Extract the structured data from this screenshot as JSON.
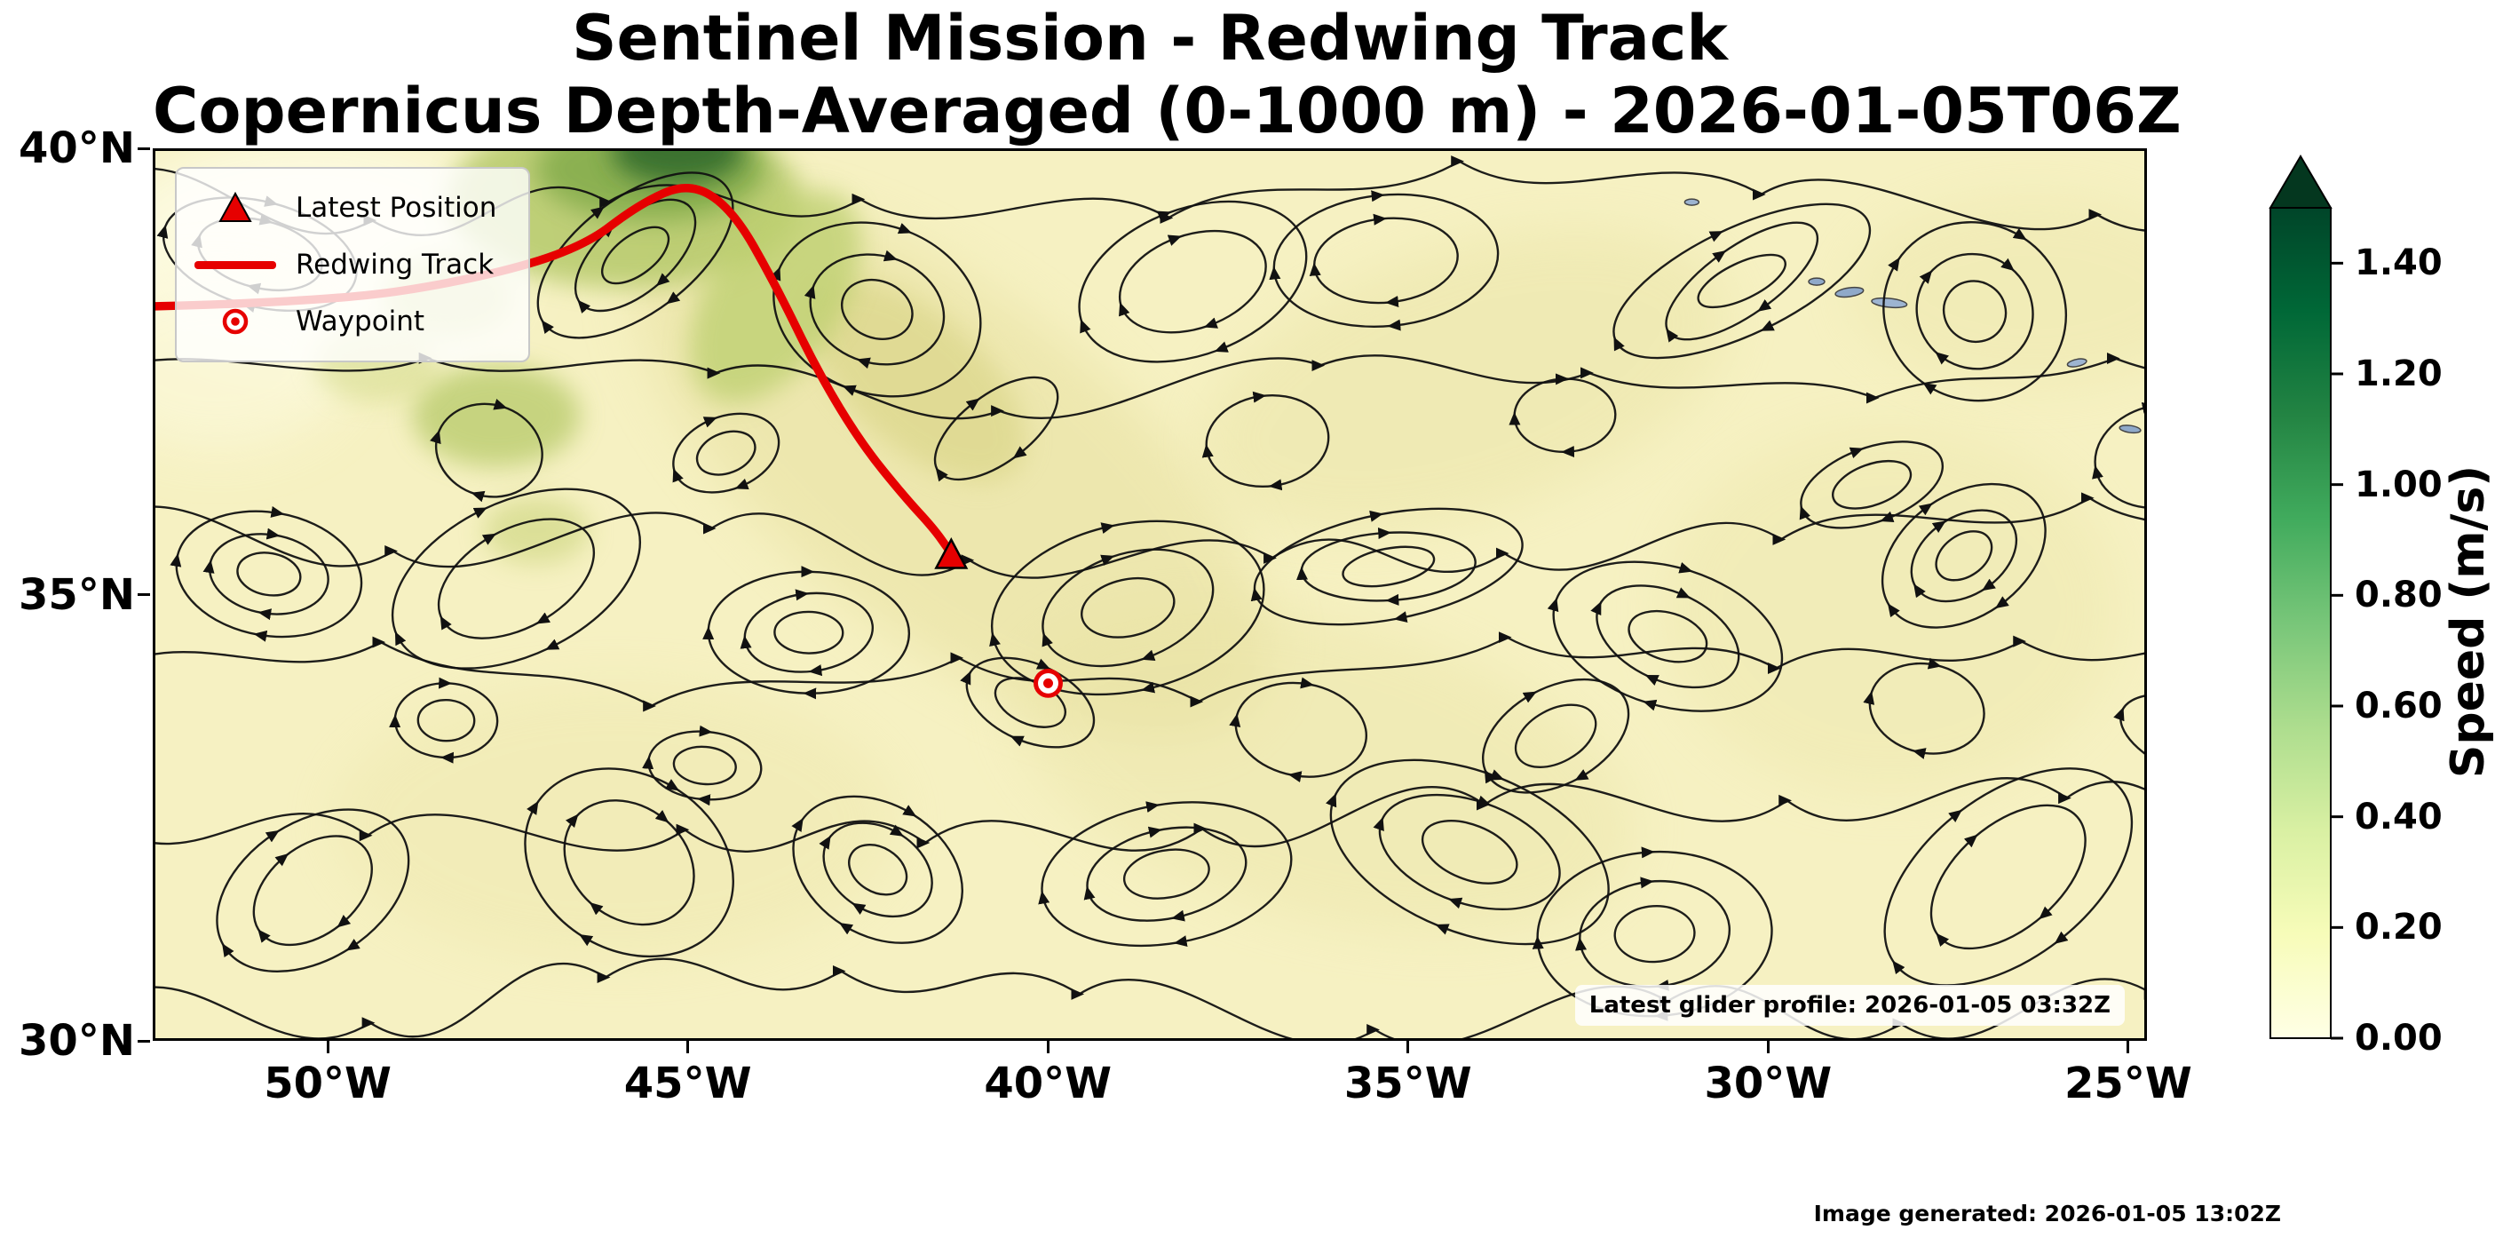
{
  "title": {
    "line1": "Sentinel Mission - Redwing Track",
    "line2": "Copernicus Depth-Averaged (0-1000 m) - 2026-01-05T06Z"
  },
  "legend": {
    "items": [
      {
        "label": "Latest Position",
        "marker": "red-triangle"
      },
      {
        "label": "Redwing Track",
        "marker": "red-line"
      },
      {
        "label": "Waypoint",
        "marker": "red-circle-dot"
      }
    ]
  },
  "axes": {
    "x_ticks": [
      "50°W",
      "45°W",
      "40°W",
      "35°W",
      "30°W",
      "25°W"
    ],
    "y_ticks": [
      "40°N",
      "35°N",
      "30°N"
    ]
  },
  "colorbar": {
    "label": "Speed (m/s)",
    "tick_labels": [
      "0.00",
      "0.20",
      "0.40",
      "0.60",
      "0.80",
      "1.00",
      "1.20",
      "1.40"
    ]
  },
  "annotations": {
    "glider_profile": "Latest glider profile: 2026-01-05 03:32Z",
    "generated": "Image generated: 2026-01-05 13:02Z"
  },
  "colors": {
    "track_red": "#e60000",
    "sea_base": "#f6f1c2",
    "streamline": "#111111",
    "colormap": "YlGn"
  },
  "chart_data": {
    "type": "map",
    "subtype": "ocean-current-streamline-field",
    "title": "Sentinel Mission - Redwing Track / Copernicus Depth-Averaged (0-1000 m) - 2026-01-05T06Z",
    "lon_range": [
      -52.43,
      -24.74
    ],
    "lat_range": [
      30,
      40
    ],
    "x_tick_values": [
      -50,
      -45,
      -40,
      -35,
      -30,
      -25
    ],
    "y_tick_values": [
      40,
      35,
      30
    ],
    "colorbar_label": "Speed (m/s)",
    "speed_range": [
      0,
      1.5
    ],
    "colorbar_tick_values": [
      0,
      0.2,
      0.4,
      0.6,
      0.8,
      1.0,
      1.2,
      1.4
    ],
    "colorbar_extend": "max",
    "track_lonlat": [
      [
        -52.43,
        38.25
      ],
      [
        -50.0,
        38.3
      ],
      [
        -48.0,
        38.55
      ],
      [
        -46.5,
        38.9
      ],
      [
        -45.7,
        39.4
      ],
      [
        -45.0,
        39.65
      ],
      [
        -44.4,
        39.35
      ],
      [
        -43.8,
        38.5
      ],
      [
        -43.2,
        37.5
      ],
      [
        -42.6,
        36.7
      ],
      [
        -42.0,
        36.1
      ],
      [
        -41.6,
        35.75
      ],
      [
        -41.38,
        35.5
      ]
    ],
    "latest_position_lonlat": [
      -41.35,
      35.42
    ],
    "waypoint_lonlat": [
      -40.0,
      34.0
    ],
    "high_speed_region_note": "green high-speed band near 44-48W / 38.5-40N, speeds elsewhere mostly < 0.3 m/s"
  }
}
